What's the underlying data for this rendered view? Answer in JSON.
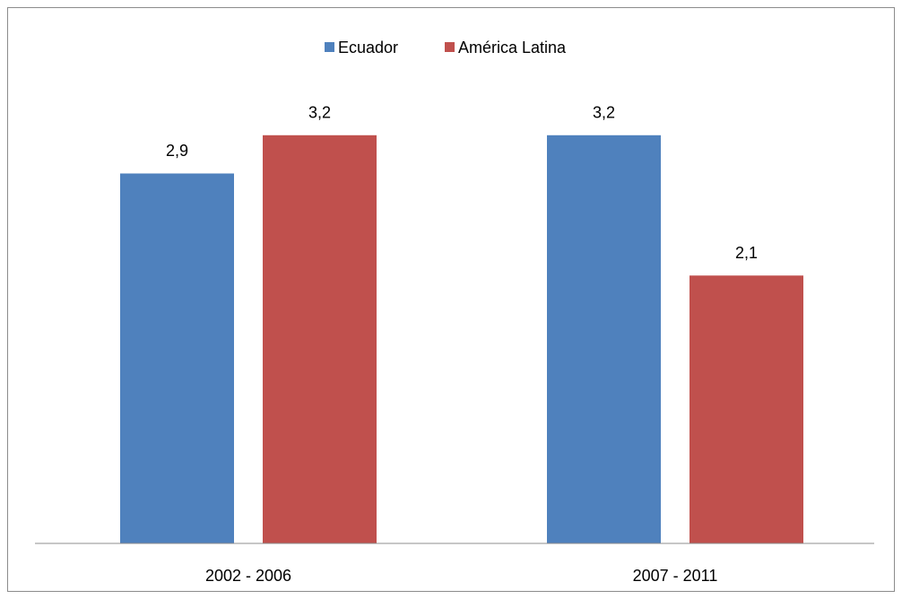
{
  "chart_data": {
    "type": "bar",
    "categories": [
      "2002 - 2006",
      "2007 - 2011"
    ],
    "series": [
      {
        "name": "Ecuador",
        "color": "#4f81bd",
        "values": [
          2.9,
          3.2
        ],
        "value_labels": [
          "2,9",
          "3,2"
        ]
      },
      {
        "name": "América Latina",
        "color": "#c0504d",
        "values": [
          3.2,
          2.1
        ],
        "value_labels": [
          "3,2",
          "2,1"
        ]
      }
    ],
    "ylim": [
      0,
      4
    ],
    "legend": "top"
  }
}
